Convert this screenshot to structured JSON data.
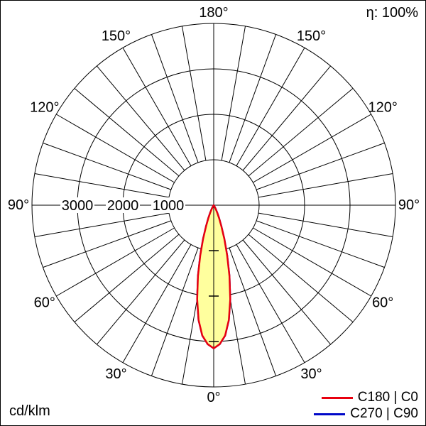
{
  "header": {
    "eta_label": "η: 100%"
  },
  "footer": {
    "unit_label": "cd/klm"
  },
  "legend": {
    "position": "bottom-right",
    "items": [
      {
        "label": "C180 | C0",
        "color": "#e8000f"
      },
      {
        "label": "C270 | C90",
        "color": "#0008c8"
      }
    ]
  },
  "chart_data": {
    "type": "polar",
    "units": "cd/klm",
    "efficiency_label": "η: 100%",
    "angle_tick_labels_deg": [
      0,
      30,
      60,
      90,
      120,
      150,
      180
    ],
    "grid_angle_step_deg": 10,
    "radial_tick_values": [
      1000,
      2000,
      3000
    ],
    "radial_max": 4000,
    "grid_color": "#000000",
    "curve_fill_color": "#ffff9e",
    "series": [
      {
        "name": "C180 | C0",
        "color": "#e8000f",
        "symmetric": true,
        "angles_deg": [
          0,
          2.5,
          5,
          7.5,
          10,
          12.5,
          15,
          17.5,
          20,
          22.5,
          25,
          27.5,
          30,
          32.5,
          35,
          37.5,
          40
        ],
        "values_cd_per_klm": [
          3150,
          3060,
          2880,
          2550,
          2100,
          1600,
          1150,
          780,
          500,
          310,
          185,
          105,
          60,
          30,
          10,
          3,
          0
        ]
      },
      {
        "name": "C270 | C90",
        "color": "#0008c8",
        "symmetric": true,
        "angles_deg": [
          0,
          2.5,
          5,
          7.5,
          10,
          12.5,
          15,
          17.5,
          20,
          22.5,
          25,
          27.5,
          30,
          32.5,
          35,
          37.5,
          40
        ],
        "values_cd_per_klm": [
          3150,
          3060,
          2880,
          2550,
          2100,
          1600,
          1150,
          780,
          500,
          310,
          185,
          105,
          60,
          30,
          10,
          3,
          0
        ]
      }
    ]
  }
}
